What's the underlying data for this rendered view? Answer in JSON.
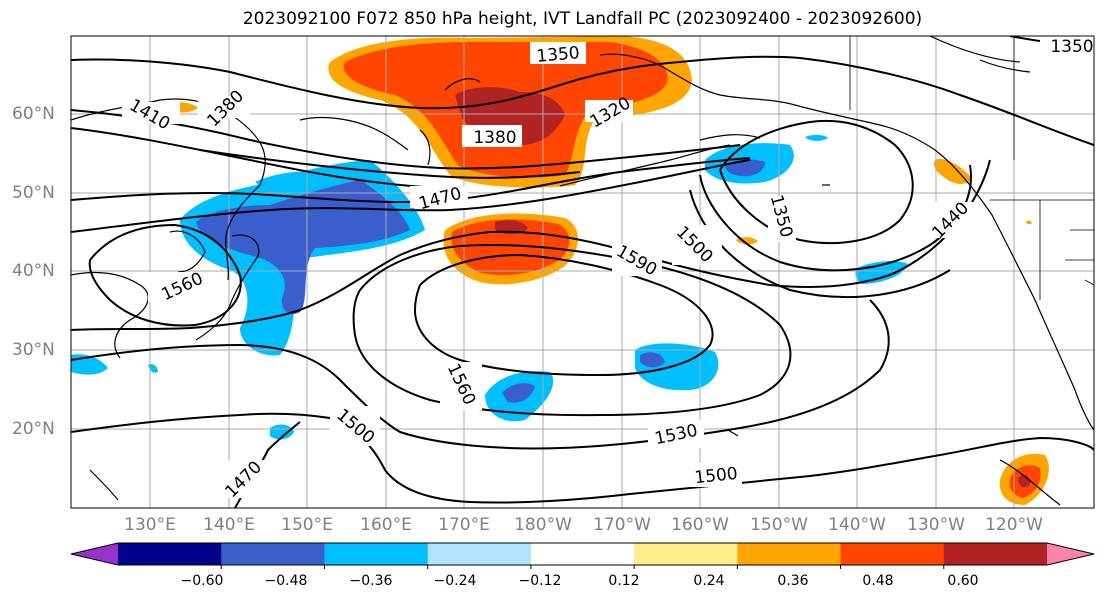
{
  "title": "2023092100 F072 850 hPa height, IVT Landfall PC (2023092400 - 2023092600)",
  "lat_labels": [
    "60°N",
    "50°N",
    "40°N",
    "30°N",
    "20°N"
  ],
  "lon_labels": [
    "130°E",
    "140°E",
    "150°E",
    "160°E",
    "170°E",
    "180°W",
    "170°W",
    "160°W",
    "150°W",
    "140°W",
    "130°W",
    "120°W"
  ],
  "contour_labels": [
    "1350",
    "1380",
    "1410",
    "1380",
    "1320",
    "1470",
    "1350",
    "1500",
    "1440",
    "1590",
    "1560",
    "1560",
    "1500",
    "1530",
    "1500",
    "1470",
    "1350"
  ],
  "colorbar": {
    "ticks": [
      "−0.60",
      "−0.48",
      "−0.36",
      "−0.24",
      "−0.12",
      "0.12",
      "0.24",
      "0.36",
      "0.48",
      "0.60"
    ],
    "colors": [
      "#9932cc",
      "#00008b",
      "#3a5fcd",
      "#00bfff",
      "#b2e2ff",
      "#ffffff",
      "#ffec8b",
      "#ffa500",
      "#ff4500",
      "#b22222",
      "#ff82ab"
    ]
  }
}
